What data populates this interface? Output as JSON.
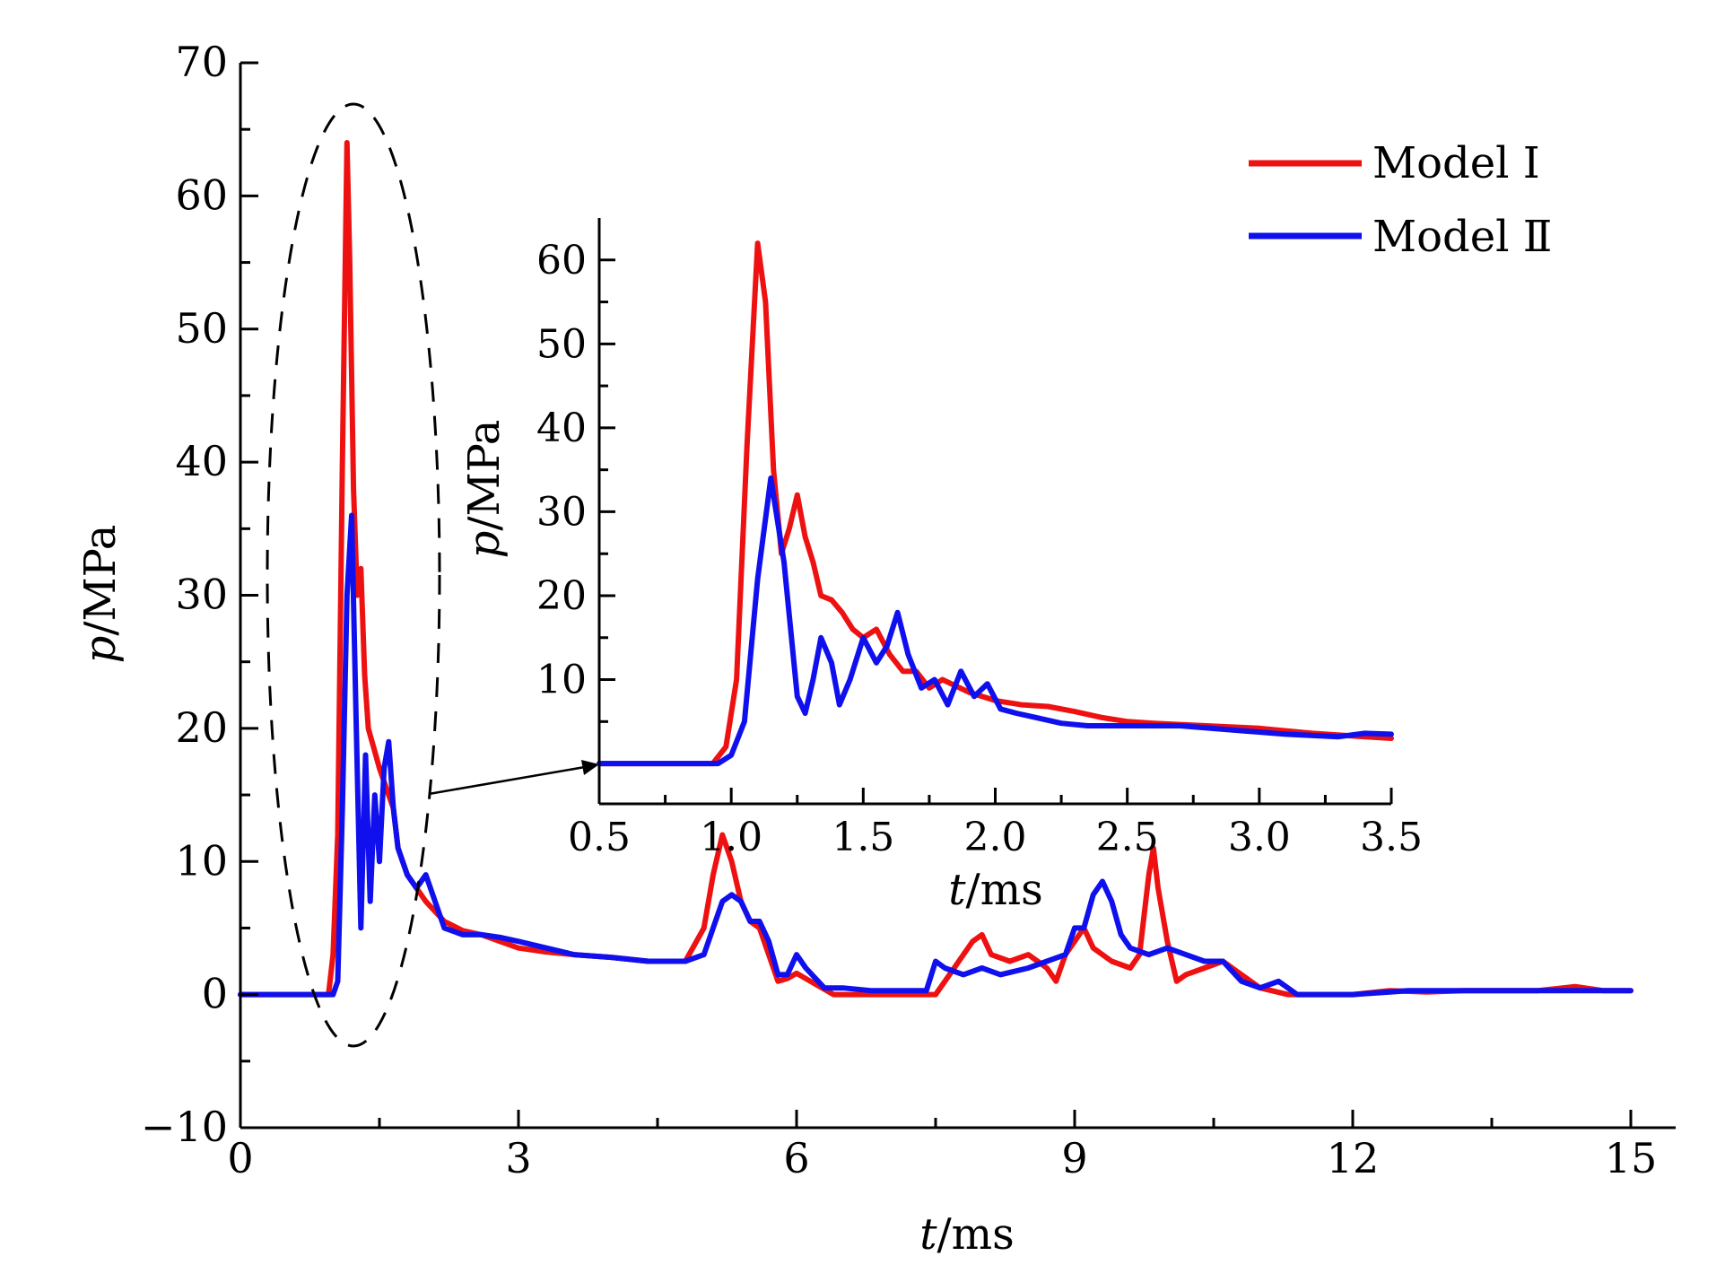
{
  "chart_data": [
    {
      "type": "line",
      "title": "",
      "xlabel_var": "t",
      "xlabel_unit": "/ms",
      "ylabel_var": "p",
      "ylabel_unit": "/MPa",
      "xlim": [
        0,
        15
      ],
      "ylim": [
        -10,
        70
      ],
      "xticks": [
        0,
        3,
        6,
        9,
        12,
        15
      ],
      "xtick_labels": [
        "0",
        "3",
        "6",
        "9",
        "12",
        "15"
      ],
      "yticks": [
        -10,
        0,
        10,
        20,
        30,
        40,
        50,
        60,
        70
      ],
      "ytick_labels": [
        "−10",
        "0",
        "10",
        "20",
        "30",
        "40",
        "50",
        "60",
        "70"
      ],
      "grid": false,
      "legend_position": "top-right",
      "series": [
        {
          "name": "Model Ⅰ",
          "color": "#ee1111",
          "x": [
            0,
            0.95,
            1.0,
            1.05,
            1.1,
            1.15,
            1.18,
            1.22,
            1.26,
            1.3,
            1.34,
            1.38,
            1.42,
            1.46,
            1.5,
            1.55,
            1.6,
            1.65,
            1.7,
            1.8,
            1.9,
            2.0,
            2.2,
            2.4,
            2.6,
            2.8,
            3.0,
            3.3,
            3.6,
            4.0,
            4.4,
            4.8,
            5.0,
            5.1,
            5.2,
            5.3,
            5.4,
            5.5,
            5.6,
            5.7,
            5.8,
            5.9,
            6.0,
            6.2,
            6.4,
            6.8,
            7.2,
            7.5,
            7.7,
            7.8,
            7.9,
            8.0,
            8.1,
            8.3,
            8.5,
            8.6,
            8.7,
            8.8,
            8.9,
            9.0,
            9.1,
            9.2,
            9.4,
            9.6,
            9.7,
            9.8,
            9.85,
            9.9,
            10.0,
            10.1,
            10.2,
            10.4,
            10.6,
            10.8,
            11.0,
            11.3,
            11.6,
            12.0,
            12.4,
            12.8,
            13.2,
            13.6,
            14.0,
            14.4,
            14.7,
            15.0
          ],
          "y": [
            0,
            0,
            3,
            12,
            40,
            64,
            55,
            38,
            30,
            32,
            24,
            20,
            19,
            18,
            17,
            16,
            15,
            14,
            11,
            9,
            8,
            7,
            5.5,
            4.8,
            4.5,
            4,
            3.5,
            3.2,
            3,
            2.8,
            2.5,
            2.5,
            5,
            9,
            12,
            10,
            7,
            5.5,
            5,
            3,
            1,
            1.2,
            1.6,
            0.8,
            0,
            0,
            0,
            0,
            2,
            3,
            4,
            4.5,
            3,
            2.5,
            3,
            2.5,
            2,
            1,
            3,
            4,
            5,
            3.5,
            2.5,
            2,
            3,
            9,
            11,
            8,
            4,
            1,
            1.5,
            2,
            2.5,
            1.5,
            0.5,
            0,
            0,
            0,
            0.3,
            0.2,
            0.3,
            0.3,
            0.3,
            0.6,
            0.3,
            0.3
          ]
        },
        {
          "name": "Model Ⅱ",
          "color": "#1010ee",
          "x": [
            0,
            1.0,
            1.05,
            1.1,
            1.15,
            1.2,
            1.25,
            1.3,
            1.35,
            1.4,
            1.45,
            1.5,
            1.55,
            1.6,
            1.65,
            1.7,
            1.8,
            1.9,
            2.0,
            2.2,
            2.4,
            2.6,
            2.8,
            3.0,
            3.3,
            3.6,
            4.0,
            4.4,
            4.8,
            5.0,
            5.1,
            5.2,
            5.3,
            5.4,
            5.5,
            5.6,
            5.7,
            5.8,
            5.9,
            6.0,
            6.1,
            6.3,
            6.5,
            6.8,
            7.2,
            7.4,
            7.5,
            7.6,
            7.8,
            8.0,
            8.2,
            8.5,
            8.7,
            8.9,
            9.0,
            9.1,
            9.2,
            9.3,
            9.4,
            9.5,
            9.6,
            9.8,
            10.0,
            10.2,
            10.4,
            10.6,
            10.8,
            11.0,
            11.2,
            11.4,
            12.0,
            12.4,
            12.6,
            13.0,
            13.5,
            14.0,
            14.5,
            15.0
          ],
          "y": [
            0,
            0,
            1,
            14,
            30,
            36,
            20,
            5,
            18,
            7,
            15,
            10,
            17,
            19,
            14,
            11,
            9,
            8,
            9,
            5,
            4.5,
            4.5,
            4.3,
            4,
            3.5,
            3,
            2.8,
            2.5,
            2.5,
            3,
            5,
            7,
            7.5,
            7,
            5.5,
            5.5,
            4,
            1.5,
            1.5,
            3,
            2,
            0.5,
            0.5,
            0.3,
            0.3,
            0.3,
            2.5,
            2,
            1.5,
            2,
            1.5,
            2,
            2.5,
            3,
            5,
            5,
            7.5,
            8.5,
            7,
            4.5,
            3.5,
            3,
            3.5,
            3,
            2.5,
            2.5,
            1,
            0.5,
            1,
            0,
            0,
            0.2,
            0.3,
            0.3,
            0.3,
            0.3,
            0.3,
            0.3
          ]
        }
      ]
    },
    {
      "type": "line",
      "title": "",
      "xlabel_var": "t",
      "xlabel_unit": "/ms",
      "ylabel_var": "p",
      "ylabel_unit": "/MPa",
      "xlim": [
        0.5,
        3.5
      ],
      "ylim": [
        -4.8,
        65
      ],
      "xticks": [
        0.5,
        1.0,
        1.5,
        2.0,
        2.5,
        3.0,
        3.5
      ],
      "xtick_labels": [
        "0.5",
        "1.0",
        "1.5",
        "2.0",
        "2.5",
        "3.0",
        "3.5"
      ],
      "yticks": [
        10,
        20,
        30,
        40,
        50,
        60
      ],
      "ytick_labels": [
        "10",
        "20",
        "30",
        "40",
        "50",
        "60"
      ],
      "grid": false,
      "series": [
        {
          "name": "Model Ⅰ",
          "color": "#ee1111",
          "x": [
            0.5,
            0.93,
            0.98,
            1.02,
            1.06,
            1.1,
            1.13,
            1.16,
            1.19,
            1.22,
            1.25,
            1.28,
            1.31,
            1.34,
            1.38,
            1.42,
            1.46,
            1.5,
            1.55,
            1.6,
            1.65,
            1.7,
            1.75,
            1.8,
            1.9,
            2.0,
            2.1,
            2.2,
            2.3,
            2.4,
            2.5,
            2.6,
            2.8,
            3.0,
            3.2,
            3.4,
            3.5
          ],
          "y": [
            0,
            0,
            2,
            10,
            38,
            62,
            55,
            35,
            25,
            28,
            32,
            27,
            24,
            20,
            19.5,
            18,
            16,
            15,
            16,
            13,
            11,
            11,
            9,
            10,
            8.5,
            7.5,
            7,
            6.8,
            6.2,
            5.5,
            5,
            4.8,
            4.5,
            4.2,
            3.6,
            3.2,
            3
          ]
        },
        {
          "name": "Model Ⅱ",
          "color": "#1010ee",
          "x": [
            0.5,
            0.95,
            1.0,
            1.05,
            1.1,
            1.15,
            1.2,
            1.25,
            1.28,
            1.31,
            1.34,
            1.38,
            1.41,
            1.45,
            1.5,
            1.55,
            1.59,
            1.63,
            1.67,
            1.72,
            1.77,
            1.82,
            1.87,
            1.92,
            1.97,
            2.02,
            2.08,
            2.15,
            2.25,
            2.35,
            2.5,
            2.7,
            2.9,
            3.1,
            3.3,
            3.4,
            3.5
          ],
          "y": [
            0,
            0,
            1,
            5,
            22,
            34,
            24,
            8,
            6,
            10,
            15,
            12,
            7,
            10,
            15,
            12,
            14,
            18,
            13,
            9,
            10,
            7,
            11,
            8,
            9.5,
            6.5,
            6,
            5.5,
            4.8,
            4.5,
            4.5,
            4.5,
            4,
            3.5,
            3.2,
            3.6,
            3.5
          ]
        }
      ]
    }
  ]
}
